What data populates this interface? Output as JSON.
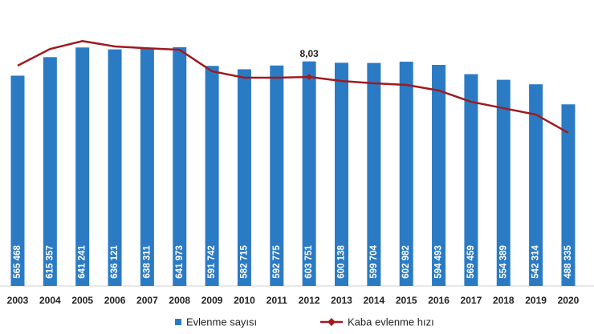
{
  "chart_data": {
    "type": "bar-line",
    "categories": [
      "2003",
      "2004",
      "2005",
      "2006",
      "2007",
      "2008",
      "2009",
      "2010",
      "2011",
      "2012",
      "2013",
      "2014",
      "2015",
      "2016",
      "2017",
      "2018",
      "2019",
      "2020"
    ],
    "ylim": [
      0,
      700000
    ],
    "y2lim": [
      5,
      10
    ],
    "series": [
      {
        "name": "Evlenme sayısı",
        "color": "#2b7bc4",
        "type": "bar",
        "values": [
          565468,
          615357,
          641241,
          636121,
          638311,
          641973,
          591742,
          582715,
          592775,
          603751,
          600138,
          599704,
          602982,
          594493,
          569459,
          554389,
          542314,
          488335
        ],
        "value_labels": [
          "565 468",
          "615 357",
          "641 241",
          "636 121",
          "638 311",
          "641 973",
          "591 742",
          "582 715",
          "592 775",
          "603 751",
          "600 138",
          "599 704",
          "602 982",
          "594 493",
          "569 459",
          "554 389",
          "542 314",
          "488 335"
        ]
      },
      {
        "name": "Kaba evlenme hızı",
        "color": "#9e1b1f",
        "type": "line",
        "axis": "y2",
        "values": [
          8.47,
          9.12,
          9.43,
          9.22,
          9.15,
          9.09,
          8.25,
          8.0,
          8.0,
          8.03,
          7.87,
          7.78,
          7.72,
          7.5,
          7.06,
          6.81,
          6.56,
          5.85
        ],
        "value_labels": [
          null,
          null,
          null,
          null,
          null,
          null,
          null,
          null,
          null,
          "8,03",
          null,
          null,
          null,
          null,
          null,
          null,
          null,
          null
        ]
      }
    ]
  }
}
